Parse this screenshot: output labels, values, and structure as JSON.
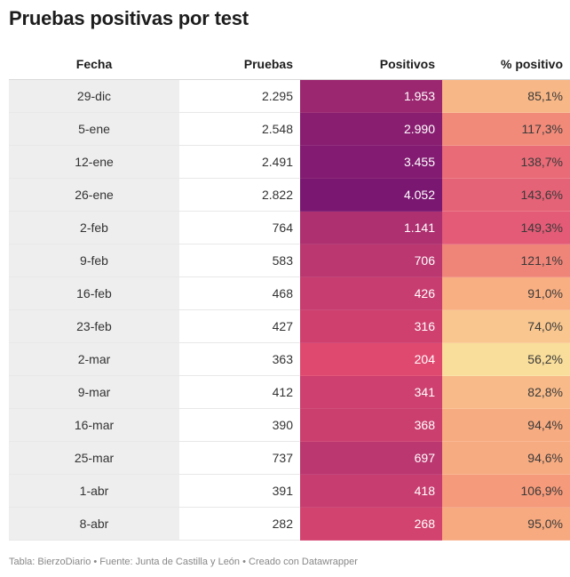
{
  "title": "Pruebas positivas por test",
  "footer": "Tabla: BierzoDiario • Fuente: Junta de Castilla y León • Creado con Datawrapper",
  "chart_data": {
    "type": "table",
    "title": "Pruebas positivas por test",
    "columns": [
      "Fecha",
      "Pruebas",
      "Positivos",
      "% positivo"
    ],
    "rows": [
      {
        "fecha": "29-dic",
        "pruebas": "2.295",
        "positivos": "1.953",
        "pct": "85,1%",
        "pos_val": 1953,
        "pct_val": 85.1
      },
      {
        "fecha": "5-ene",
        "pruebas": "2.548",
        "positivos": "2.990",
        "pct": "117,3%",
        "pos_val": 2990,
        "pct_val": 117.3
      },
      {
        "fecha": "12-ene",
        "pruebas": "2.491",
        "positivos": "3.455",
        "pct": "138,7%",
        "pos_val": 3455,
        "pct_val": 138.7
      },
      {
        "fecha": "26-ene",
        "pruebas": "2.822",
        "positivos": "4.052",
        "pct": "143,6%",
        "pos_val": 4052,
        "pct_val": 143.6
      },
      {
        "fecha": "2-feb",
        "pruebas": "764",
        "positivos": "1.141",
        "pct": "149,3%",
        "pos_val": 1141,
        "pct_val": 149.3
      },
      {
        "fecha": "9-feb",
        "pruebas": "583",
        "positivos": "706",
        "pct": "121,1%",
        "pos_val": 706,
        "pct_val": 121.1
      },
      {
        "fecha": "16-feb",
        "pruebas": "468",
        "positivos": "426",
        "pct": "91,0%",
        "pos_val": 426,
        "pct_val": 91.0
      },
      {
        "fecha": "23-feb",
        "pruebas": "427",
        "positivos": "316",
        "pct": "74,0%",
        "pos_val": 316,
        "pct_val": 74.0
      },
      {
        "fecha": "2-mar",
        "pruebas": "363",
        "positivos": "204",
        "pct": "56,2%",
        "pos_val": 204,
        "pct_val": 56.2
      },
      {
        "fecha": "9-mar",
        "pruebas": "412",
        "positivos": "341",
        "pct": "82,8%",
        "pos_val": 341,
        "pct_val": 82.8
      },
      {
        "fecha": "16-mar",
        "pruebas": "390",
        "positivos": "368",
        "pct": "94,4%",
        "pos_val": 368,
        "pct_val": 94.4
      },
      {
        "fecha": "25-mar",
        "pruebas": "737",
        "positivos": "697",
        "pct": "94,6%",
        "pos_val": 697,
        "pct_val": 94.6
      },
      {
        "fecha": "1-abr",
        "pruebas": "391",
        "positivos": "418",
        "pct": "106,9%",
        "pos_val": 418,
        "pct_val": 106.9
      },
      {
        "fecha": "8-abr",
        "pruebas": "282",
        "positivos": "268",
        "pct": "95,0%",
        "pos_val": 268,
        "pct_val": 95.0
      }
    ],
    "heatmap": {
      "positivos_domain": [
        204,
        4052
      ],
      "pct_domain": [
        56.2,
        149.3
      ],
      "positivos_colors": [
        "#e0496f",
        "#7a1771"
      ],
      "pct_colors": [
        "#f9dd9a",
        "#f7a07a",
        "#e35b76"
      ]
    }
  }
}
